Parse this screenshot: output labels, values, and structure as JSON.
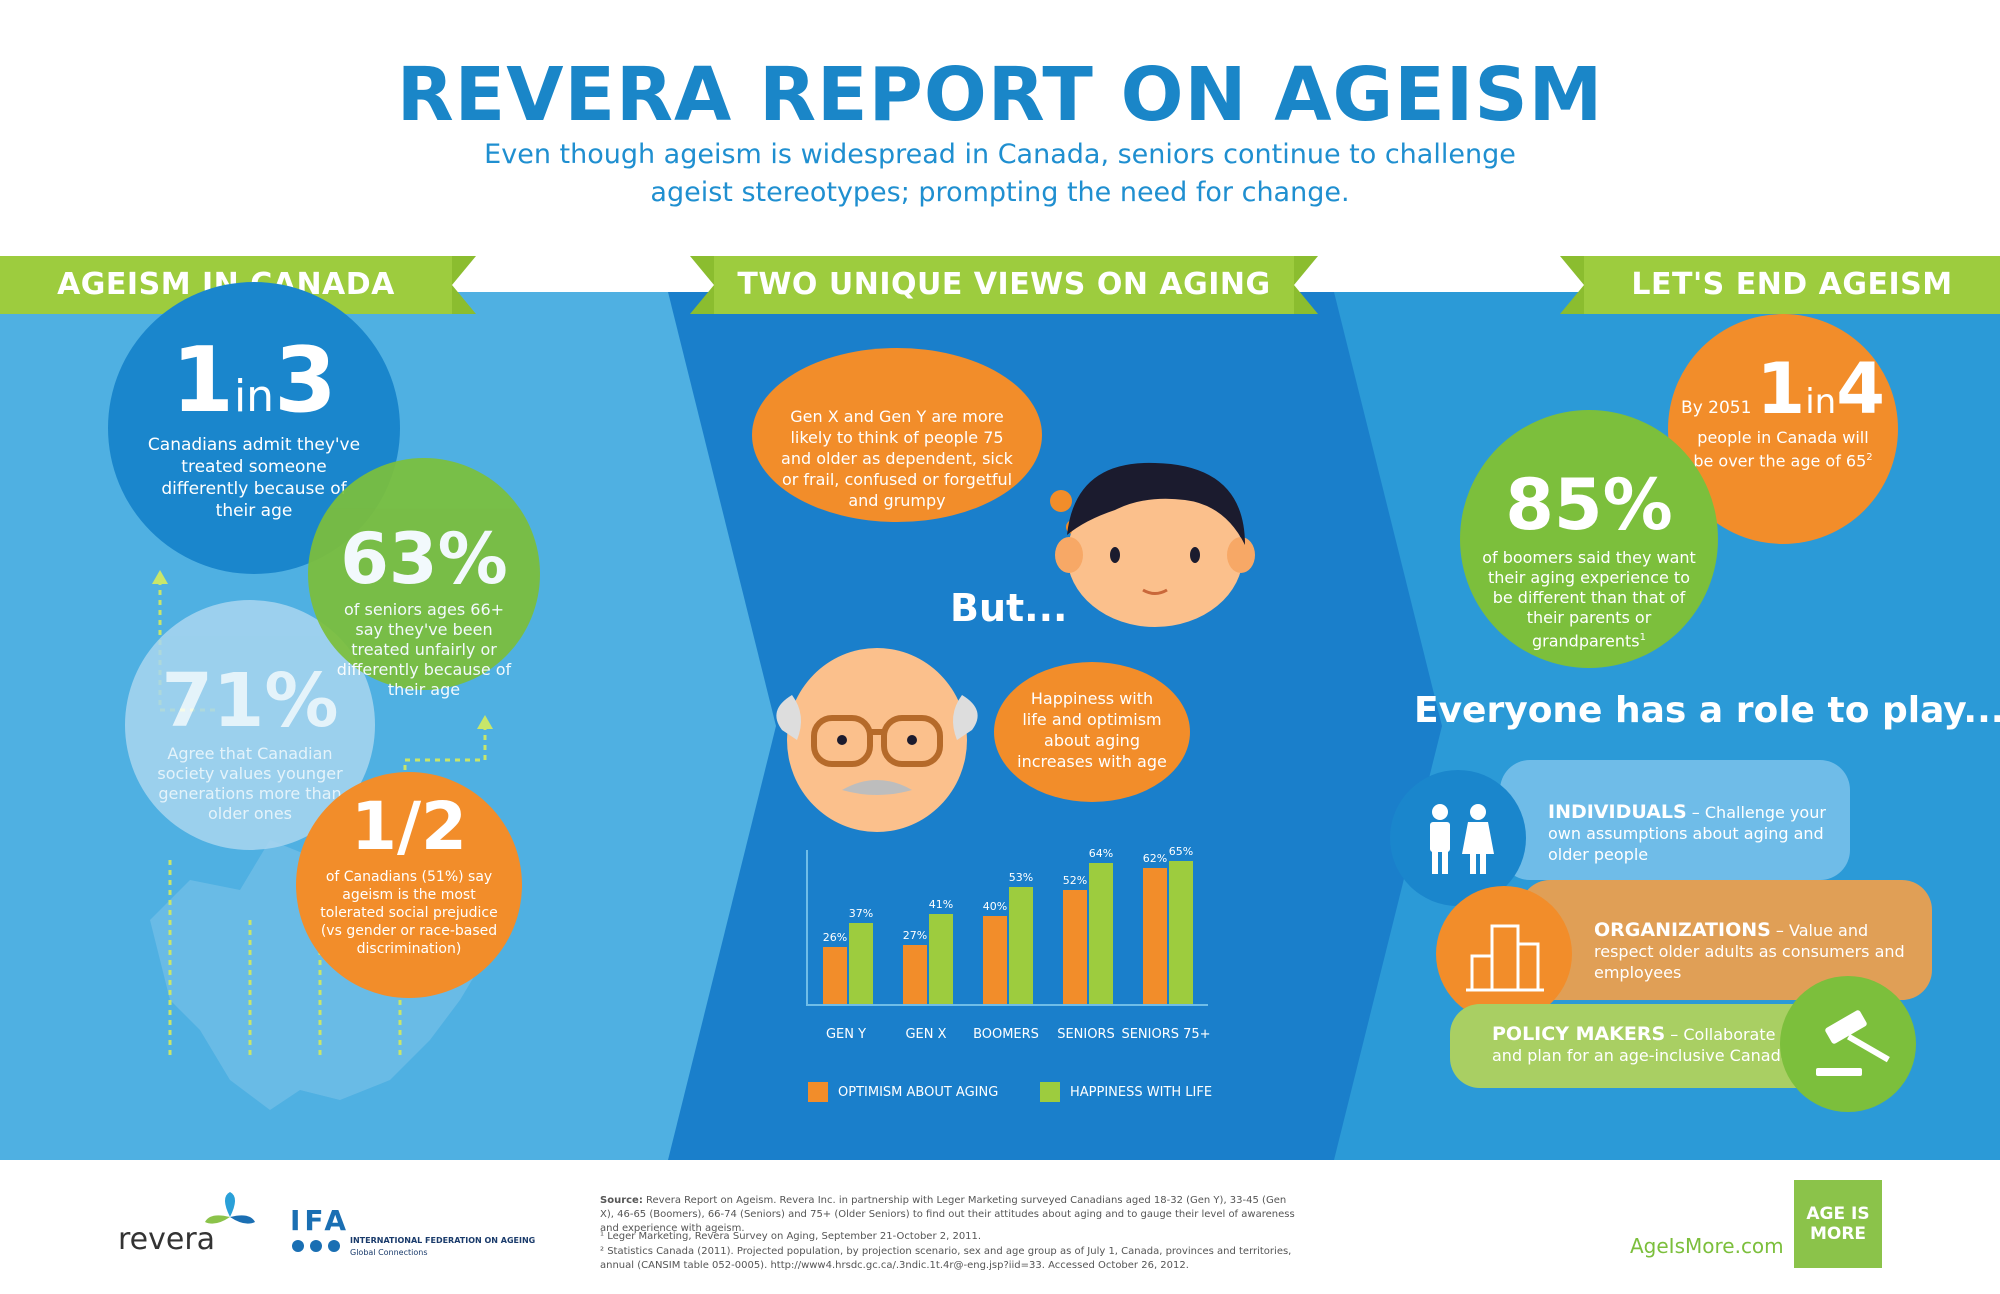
{
  "header": {
    "title": "REVERA REPORT ON AGEISM",
    "subtitle_line1": "Even though ageism is widespread in Canada, seniors continue to challenge",
    "subtitle_line2": "ageist stereotypes; prompting the need for change."
  },
  "left": {
    "ribbon": "AGEISM IN CANADA",
    "stat1": {
      "num": "1",
      "in": "in",
      "den": "3",
      "text": "Canadians admit they've treated someone differently because of their age"
    },
    "stat2": {
      "value": "63%",
      "text": "of seniors ages 66+ say they've been treated unfairly or differently because of their age"
    },
    "stat3": {
      "value": "71%",
      "text": "Agree that Canadian society values younger generations more than older ones"
    },
    "stat4": {
      "value": "1/2",
      "text": "of Canadians (51%) say ageism is the most tolerated social prejudice (vs gender or race-based discrimination)"
    }
  },
  "middle": {
    "ribbon": "TWO UNIQUE VIEWS ON AGING",
    "bubble1": "Gen X and Gen Y are more likely to think of people 75 and older as dependent, sick or frail, confused or forgetful and grumpy",
    "but": "But...",
    "bubble2": "Happiness with life and optimism about aging increases with age",
    "legend_optimism": "OPTIMISM ABOUT AGING",
    "legend_happiness": "HAPPINESS WITH LIFE",
    "legend_colors": {
      "optimism": "#f28d2a",
      "happiness": "#9dcc3e"
    }
  },
  "chart_data": {
    "type": "bar",
    "categories": [
      "GEN Y",
      "GEN X",
      "BOOMERS",
      "SENIORS",
      "SENIORS 75+"
    ],
    "series": [
      {
        "name": "OPTIMISM ABOUT AGING",
        "values": [
          26,
          27,
          40,
          52,
          62
        ]
      },
      {
        "name": "HAPPINESS WITH LIFE",
        "values": [
          37,
          41,
          53,
          64,
          65
        ]
      }
    ],
    "unit": "%",
    "ylim": [
      0,
      70
    ]
  },
  "right": {
    "ribbon": "LET'S END AGEISM",
    "stat1": {
      "prefix": "By 2051",
      "num": "1",
      "in": "in",
      "den": "4",
      "text": "people in Canada will be over the age of 65",
      "note": "2"
    },
    "stat2": {
      "value": "85%",
      "text": "of boomers said they want their aging experience to be different than that of their parents or grandparents",
      "note": "1"
    },
    "role_title": "Everyone has a role to play...",
    "roles": [
      {
        "name": "INDIVIDUALS",
        "text": " – Challenge your own assumptions about aging and older people"
      },
      {
        "name": "ORGANIZATIONS",
        "text": " – Value and respect older adults as consumers and employees"
      },
      {
        "name": "POLICY MAKERS",
        "text": " – Collaborate and plan for an age-inclusive Canada"
      }
    ]
  },
  "footer": {
    "revera": "revera",
    "ifa": "IFA",
    "ifa_line1": "INTERNATIONAL FEDERATION ON AGEING",
    "ifa_line2": "Global Connections",
    "source_label": "Source:",
    "source_text": " Revera Report on Ageism. Revera Inc. in partnership with Leger Marketing surveyed Canadians aged 18-32 (Gen Y), 33-45 (Gen X), 46-65 (Boomers), 66-74 (Seniors) and 75+ (Older Seniors) to find out their attitudes about aging and to gauge their level of awareness and experience with ageism.",
    "note1": "¹ Leger Marketing, Revera Survey on Aging, September 21-October 2, 2011.",
    "note2": "² Statistics Canada (2011). Projected population, by projection scenario, sex and age group as of July 1, Canada, provinces and territories, annual (CANSIM table 052-0005). http://www4.hrsdc.gc.ca/.3ndic.1t.4r@-eng.jsp?iid=33. Accessed October 26, 2012.",
    "url": "AgeIsMore.com",
    "badge_line1": "AGE IS",
    "badge_line2": "MORE"
  }
}
